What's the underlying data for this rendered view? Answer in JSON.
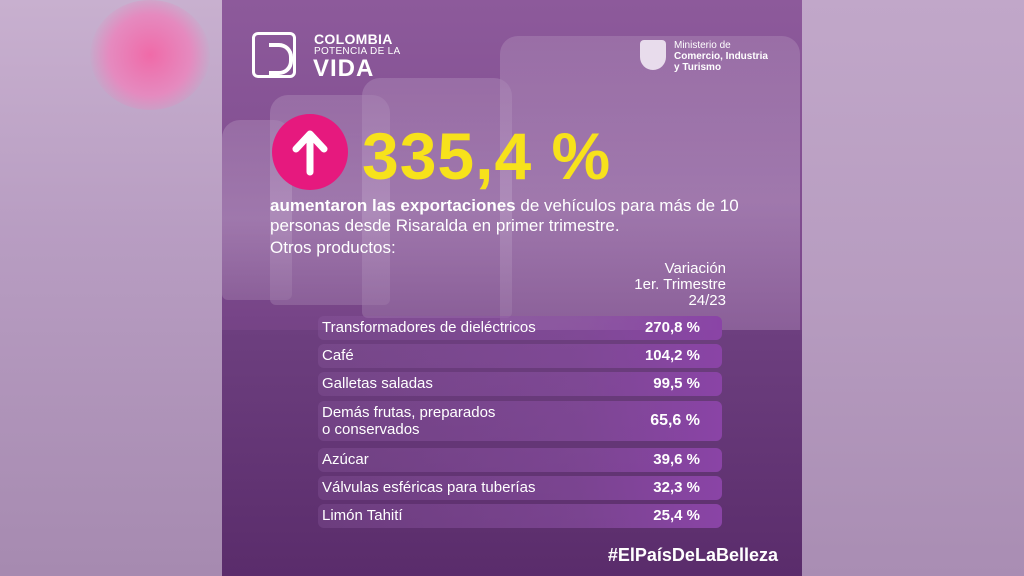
{
  "logo": {
    "line1": "COLOMBIA",
    "line2": "POTENCIA DE LA",
    "line3": "VIDA"
  },
  "ministry": {
    "line1": "Ministerio de",
    "line2": "Comercio, Industria",
    "line3": "y Turismo"
  },
  "headline": {
    "value": "335,4 %",
    "description_bold": "aumentaron las exportaciones",
    "description_rest": " de vehículos para más de 10 personas desde Risaralda en primer trimestre."
  },
  "table": {
    "section_label": "Otros productos:",
    "header": [
      "Variación",
      "1er. Trimestre",
      "24/23"
    ],
    "rows": [
      [
        "Transformadores de dieléctricos",
        "270,8 %"
      ],
      [
        "Café",
        "104,2 %"
      ],
      [
        "Galletas saladas",
        "99,5 %"
      ],
      [
        "Demás frutas, preparados\no conservados",
        "65,6 %"
      ],
      [
        "Azúcar",
        "39,6 %"
      ],
      [
        "Válvulas esféricas para tuberías",
        "32,3 %"
      ],
      [
        "Limón Tahití",
        "25,4 %"
      ]
    ]
  },
  "footer": {
    "hashtag": "#ElPaísDeLaBelleza"
  }
}
